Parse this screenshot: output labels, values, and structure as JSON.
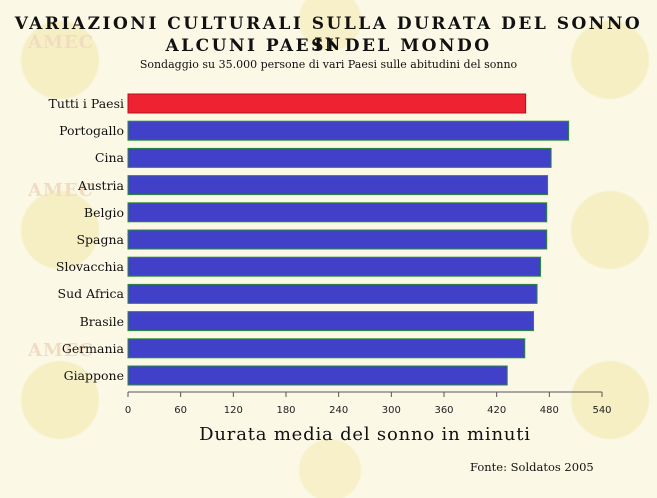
{
  "title_line1": "VARIAZIONI CULTURALI SULLA DURATA DEL SONNO IN",
  "title_line2": "ALCUNI PAESI DEL MONDO",
  "subtitle": "Sondaggio su 35.000 persone di vari Paesi sulle abitudini del sonno",
  "watermark": "AMEC",
  "source": "Fonte: Soldatos 2005",
  "colors": {
    "highlight": "#ee2231",
    "bar": "#4040c8",
    "bar_edge": "#2a8a3a"
  },
  "chart_data": {
    "type": "bar",
    "orientation": "horizontal",
    "categories": [
      "Tutti i Paesi",
      "Portogallo",
      "Cina",
      "Austria",
      "Belgio",
      "Spagna",
      "Slovacchia",
      "Sud Africa",
      "Brasile",
      "Germania",
      "Giappone"
    ],
    "values": [
      453,
      502,
      482,
      478,
      477,
      477,
      470,
      466,
      462,
      452,
      432
    ],
    "highlight_index": 0,
    "xlabel": "Durata media del sonno in minuti",
    "xlim": [
      0,
      540
    ],
    "xticks": [
      0,
      60,
      120,
      180,
      240,
      300,
      360,
      420,
      480,
      540
    ],
    "grid": false
  }
}
